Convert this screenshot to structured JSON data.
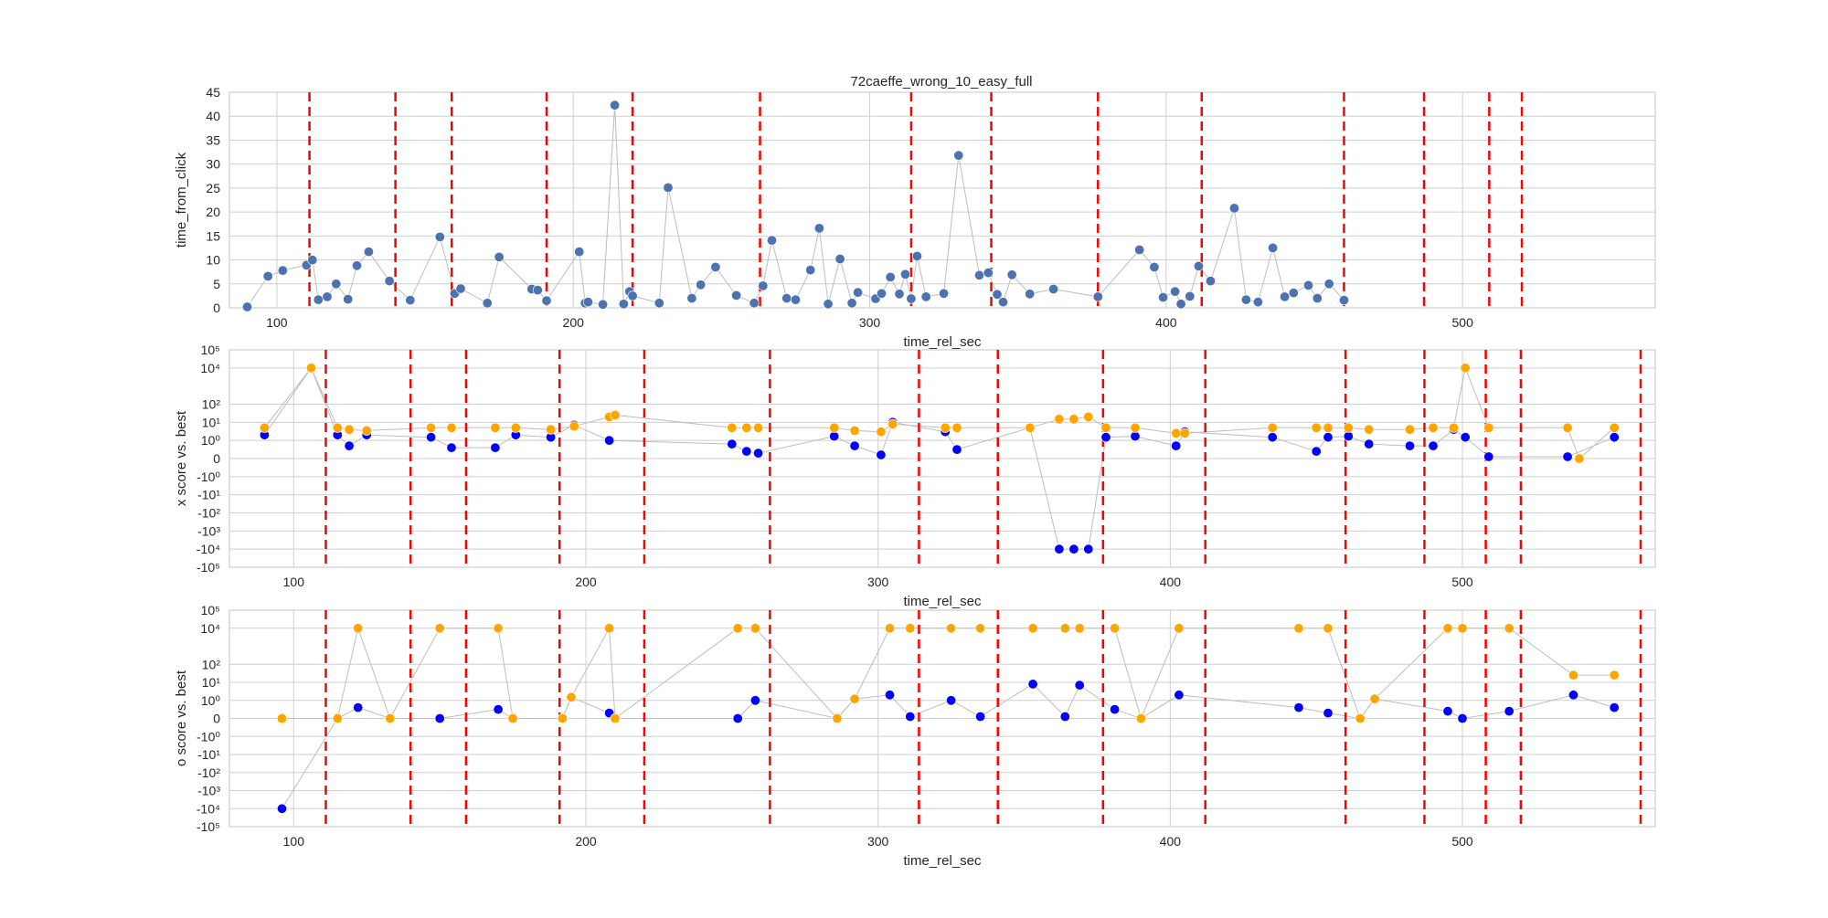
{
  "figure": {
    "title": "72caeffe_wrong_10_easy_full"
  },
  "chart_data": [
    {
      "type": "scatter",
      "title": "72caeffe_wrong_10_easy_full",
      "xlabel": "time_rel_sec",
      "ylabel": "time_from_click",
      "xlim": [
        84,
        565
      ],
      "ylim": [
        0,
        45
      ],
      "yscale": "linear",
      "xticks": [
        100,
        200,
        300,
        400,
        500
      ],
      "yticks": [
        0,
        5,
        10,
        15,
        20,
        25,
        30,
        35,
        40,
        45
      ],
      "grid": true,
      "legend": "none",
      "vlines": [
        111,
        140,
        159,
        191,
        220,
        263,
        314,
        341,
        377,
        412,
        460,
        487,
        509,
        520
      ],
      "series": [
        {
          "color": "#4c72b0",
          "x": [
            90,
            97,
            102,
            110,
            112,
            114,
            117,
            120,
            124,
            127,
            131,
            138,
            145,
            155,
            160,
            162,
            171,
            175,
            186,
            188,
            191,
            202,
            204,
            205,
            210,
            214,
            217,
            219,
            220,
            229,
            232,
            240,
            243,
            248,
            255,
            261,
            264,
            267,
            272,
            275,
            280,
            283,
            286,
            290,
            294,
            296,
            302,
            304,
            307,
            310,
            312,
            314,
            316,
            319,
            325,
            330,
            337,
            340,
            343,
            345,
            348,
            354,
            362,
            377,
            391,
            396,
            399,
            403,
            405,
            408,
            411,
            415,
            423,
            427,
            431,
            436,
            440,
            443,
            448,
            451,
            455,
            460
          ],
          "y": [
            0.2,
            6.6,
            7.8,
            8.9,
            10.0,
            1.7,
            2.3,
            5.0,
            1.8,
            8.8,
            11.7,
            5.6,
            1.6,
            14.8,
            3.0,
            4.0,
            1.0,
            10.6,
            3.9,
            3.7,
            1.5,
            11.7,
            1.0,
            1.2,
            0.7,
            42.3,
            0.8,
            3.4,
            2.5,
            1.0,
            25.1,
            2.0,
            4.8,
            8.5,
            2.6,
            1.0,
            4.6,
            14.1,
            2.0,
            1.7,
            7.9,
            16.6,
            0.8,
            10.2,
            1.0,
            3.2,
            1.9,
            3.0,
            6.4,
            2.9,
            7.0,
            1.9,
            10.8,
            2.3,
            3.0,
            31.8,
            6.8,
            7.3,
            2.8,
            1.2,
            6.9,
            2.9,
            3.9,
            2.3,
            12.1,
            8.5,
            2.2,
            3.4,
            0.8,
            2.4,
            8.7,
            5.6,
            20.8,
            1.7,
            1.2,
            12.5,
            2.3,
            3.1,
            4.7,
            2.0,
            5.0,
            1.6
          ]
        }
      ]
    },
    {
      "type": "scatter",
      "xlabel": "time_rel_sec",
      "ylabel": "x score vs. best",
      "xlim": [
        78,
        566
      ],
      "ylim": [
        -100000,
        100000
      ],
      "yscale": "symlog",
      "xticks": [
        100,
        200,
        300,
        400,
        500
      ],
      "yticks": [
        100000,
        10000,
        100,
        10,
        1,
        0,
        -1,
        -10,
        -100,
        -1000,
        -10000,
        -100000
      ],
      "ytick_labels": [
        "10⁵",
        "10⁴",
        "10²",
        "10¹",
        "10⁰",
        "0",
        "-10⁰",
        "-10¹",
        "-10²",
        "-10³",
        "-10⁴",
        "-10⁵"
      ],
      "grid": true,
      "legend": "none",
      "vlines": [
        111,
        140,
        159,
        191,
        220,
        263,
        314,
        341,
        377,
        412,
        460,
        487,
        508,
        520,
        561
      ],
      "series": [
        {
          "color": "#0000ff",
          "x": [
            90,
            106,
            115,
            119,
            125,
            147,
            154,
            169,
            176,
            188,
            196,
            208,
            250,
            255,
            259,
            285,
            292,
            301,
            305,
            323,
            327,
            352,
            362,
            367,
            372,
            378,
            388,
            402,
            405,
            435,
            450,
            454,
            461,
            468,
            482,
            490,
            497,
            501,
            509,
            536,
            552
          ],
          "y": [
            2,
            10000,
            2,
            0.7,
            2,
            1.5,
            0.6,
            0.6,
            2,
            1.5,
            7,
            1,
            0.8,
            0.4,
            0.3,
            1.7,
            0.7,
            0.2,
            10,
            3,
            0.5,
            5,
            -10000,
            -10000,
            -10000,
            1.5,
            1.7,
            0.7,
            3,
            1.5,
            0.4,
            1.5,
            1.7,
            0.8,
            0.7,
            0.7,
            4,
            1.5,
            0.1,
            0.1,
            1.5
          ]
        },
        {
          "color": "#ffa500",
          "x": [
            90,
            106,
            115,
            119,
            125,
            147,
            154,
            169,
            176,
            188,
            196,
            208,
            210,
            250,
            255,
            259,
            285,
            292,
            301,
            305,
            323,
            327,
            352,
            362,
            367,
            372,
            378,
            388,
            402,
            405,
            435,
            450,
            454,
            461,
            468,
            482,
            490,
            497,
            501,
            509,
            536,
            540,
            552
          ],
          "y": [
            5,
            10000,
            5,
            4,
            3.5,
            5,
            5,
            5,
            5,
            4,
            6,
            20,
            25,
            5,
            5,
            5,
            5,
            3.5,
            3,
            8,
            5,
            5,
            5,
            15,
            15,
            20,
            5,
            5,
            2.5,
            2.5,
            5,
            5,
            5,
            5,
            4,
            4,
            5,
            5,
            10000,
            5,
            5,
            0,
            5
          ]
        }
      ]
    },
    {
      "type": "scatter",
      "xlabel": "time_rel_sec",
      "ylabel": "o score vs. best",
      "xlim": [
        78,
        566
      ],
      "ylim": [
        -100000,
        100000
      ],
      "yscale": "symlog",
      "xticks": [
        100,
        200,
        300,
        400,
        500
      ],
      "yticks": [
        100000,
        10000,
        100,
        10,
        1,
        0,
        -1,
        -10,
        -100,
        -1000,
        -10000,
        -100000
      ],
      "ytick_labels": [
        "10⁵",
        "10⁴",
        "10²",
        "10¹",
        "10⁰",
        "0",
        "-10⁰",
        "-10¹",
        "-10²",
        "-10³",
        "-10⁴",
        "-10⁵"
      ],
      "grid": true,
      "legend": "none",
      "vlines": [
        111,
        140,
        159,
        191,
        220,
        263,
        314,
        341,
        377,
        412,
        460,
        487,
        508,
        520,
        561
      ],
      "series": [
        {
          "color": "#0000ff",
          "x": [
            96,
            115,
            122,
            133,
            150,
            170,
            175,
            192,
            195,
            208,
            210,
            252,
            258,
            286,
            292,
            304,
            311,
            325,
            335,
            353,
            364,
            369,
            381,
            390,
            403,
            444,
            454,
            465,
            470,
            495,
            500,
            516,
            538,
            552
          ],
          "y": [
            -10000,
            0,
            0.6,
            0,
            0,
            0.5,
            0,
            0,
            1.5,
            0.3,
            0,
            0,
            1,
            0,
            1.2,
            2,
            0.1,
            1,
            0.1,
            8,
            0.1,
            7,
            0.5,
            0,
            2,
            0.6,
            0.3,
            0,
            1.2,
            0.4,
            0,
            0.4,
            2,
            0.6
          ]
        },
        {
          "color": "#ffa500",
          "x": [
            96,
            115,
            122,
            133,
            150,
            170,
            175,
            192,
            195,
            208,
            210,
            252,
            258,
            286,
            292,
            304,
            311,
            325,
            335,
            353,
            364,
            369,
            381,
            390,
            403,
            444,
            454,
            465,
            470,
            495,
            500,
            516,
            538,
            552
          ],
          "y": [
            0,
            0,
            10000,
            0,
            10000,
            10000,
            0,
            0,
            1.5,
            10000,
            0,
            10000,
            10000,
            0,
            1.2,
            10000,
            10000,
            10000,
            10000,
            10000,
            10000,
            10000,
            10000,
            0,
            10000,
            10000,
            10000,
            0,
            1.2,
            10000,
            10000,
            10000,
            25,
            25
          ]
        }
      ]
    }
  ]
}
